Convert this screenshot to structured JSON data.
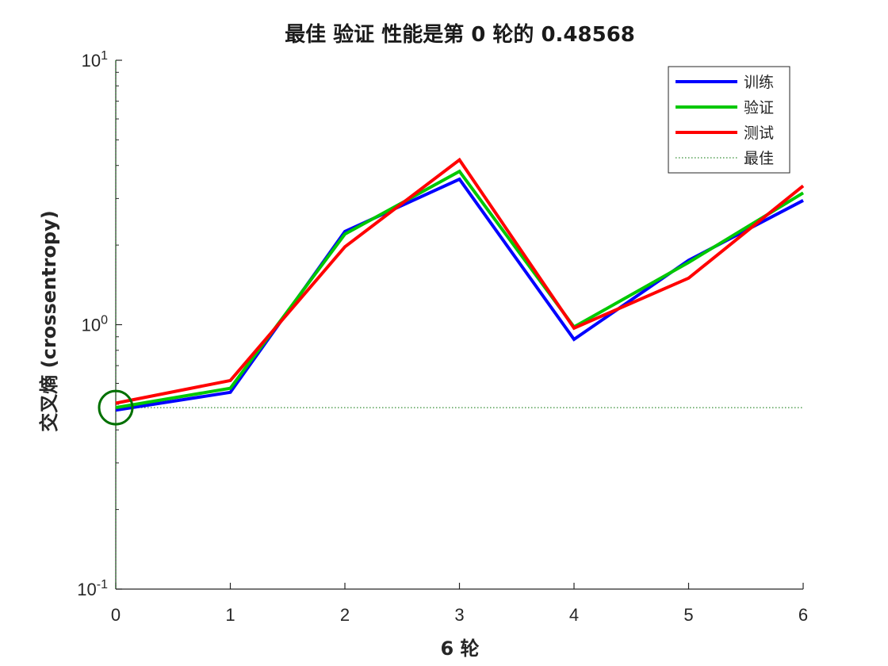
{
  "chart_data": {
    "type": "line",
    "title": "最佳 验证 性能是第 0 轮的 0.48568",
    "xlabel": "6 轮",
    "ylabel": "交叉熵 (crossentropy)",
    "x": [
      0,
      1,
      2,
      3,
      4,
      5,
      6
    ],
    "xlim": [
      0,
      6
    ],
    "ylim": [
      0.1,
      10
    ],
    "yscale": "log",
    "yticks": [
      {
        "base": "10",
        "exp": "-1"
      },
      {
        "base": "10",
        "exp": "0"
      },
      {
        "base": "10",
        "exp": "1"
      }
    ],
    "grid": false,
    "legend_position": "top-right",
    "series": [
      {
        "name": "训练",
        "color": "#0000ff",
        "values": [
          0.475,
          0.555,
          2.25,
          3.55,
          0.88,
          1.75,
          2.95
        ]
      },
      {
        "name": "验证",
        "color": "#00c800",
        "values": [
          0.48568,
          0.575,
          2.2,
          3.8,
          0.98,
          1.72,
          3.15
        ]
      },
      {
        "name": "测试",
        "color": "#ff0000",
        "values": [
          0.505,
          0.615,
          1.97,
          4.2,
          0.97,
          1.5,
          3.35
        ]
      }
    ],
    "best": {
      "name": "最佳",
      "color": "#007000",
      "epoch": 0,
      "value": 0.48568
    }
  }
}
